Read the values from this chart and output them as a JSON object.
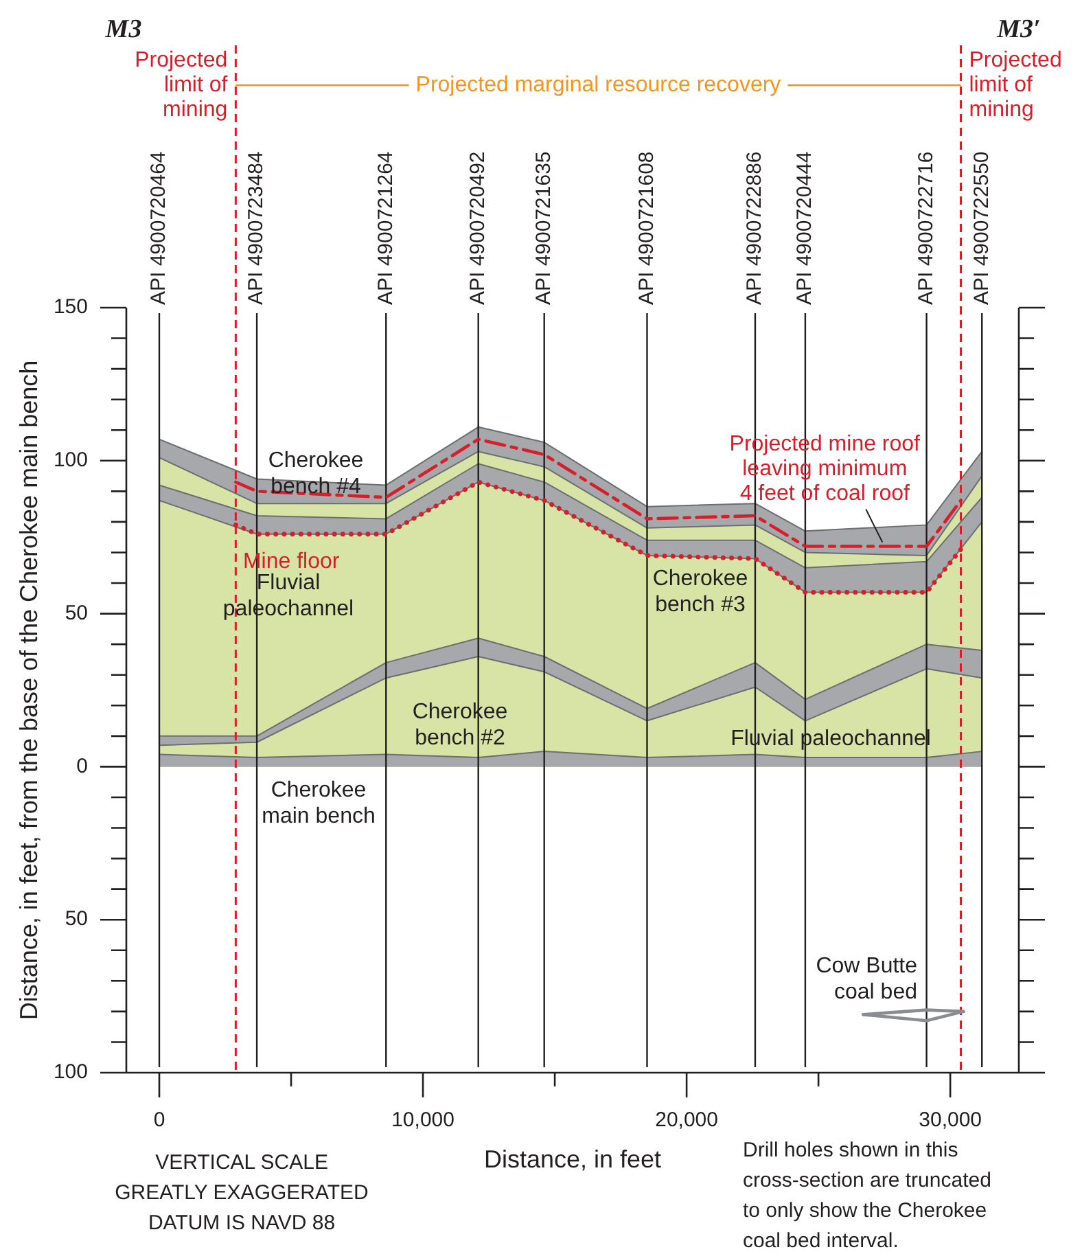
{
  "chart_data": {
    "type": "area",
    "xlabel": "Distance, in feet",
    "ylabel": "Distance, in feet, from the base of the Cherokee main bench",
    "x": [
      0,
      3700,
      8600,
      12100,
      14600,
      18500,
      22600,
      24500,
      29100,
      31200
    ],
    "series": [
      {
        "color": "#a6a8ab",
        "values": [
          4,
          3,
          4,
          3,
          5,
          3,
          4,
          3,
          3,
          5
        ]
      },
      {
        "color": "#d8e4a6",
        "values": [
          7,
          8,
          29,
          36,
          31,
          15,
          26,
          15,
          32,
          29
        ]
      },
      {
        "color": "#a6a8ab",
        "values": [
          10,
          10,
          34,
          42,
          36,
          19,
          34,
          22,
          40,
          38
        ]
      },
      {
        "color": "#d8e4a6",
        "values": [
          87,
          76,
          76,
          93,
          87,
          69,
          68,
          57,
          57,
          80
        ]
      },
      {
        "color": "#a6a8ab",
        "values": [
          92,
          82,
          81,
          99,
          93,
          74,
          74,
          65,
          67,
          88
        ]
      },
      {
        "color": "#d8e4a6",
        "values": [
          101,
          86,
          86,
          103,
          98,
          78,
          79,
          70,
          69,
          95
        ]
      },
      {
        "color": "#a6a8ab",
        "values": [
          107,
          94,
          92,
          111,
          106,
          85,
          86,
          77,
          79,
          103
        ]
      },
      {
        "type": "line",
        "name": "Mine floor",
        "color": "#d71f2b",
        "line_style": "dotted",
        "x": [
          2900,
          3700,
          8600,
          12100,
          14600,
          18500,
          22600,
          24500,
          29100,
          30400
        ],
        "values": [
          79,
          76,
          76,
          93,
          87,
          69,
          68,
          57,
          57,
          71
        ]
      },
      {
        "type": "line",
        "name": "Projected mine roof\nleaving minimum\n4 feet of coal roof",
        "color": "#d71f2b",
        "line_style": "dashed",
        "x": [
          2900,
          3700,
          8600,
          12100,
          14600,
          18500,
          22600,
          24500,
          29100,
          30400
        ],
        "values": [
          93,
          90,
          88,
          107,
          102,
          81,
          82,
          72,
          72,
          87
        ]
      },
      {
        "type": "line",
        "color": "#8a8c8f",
        "x": [
          26700,
          29100,
          30500
        ],
        "values": [
          -81,
          -83,
          -80
        ]
      },
      {
        "type": "line",
        "color": "#8a8c8f",
        "x": [
          26700,
          29100,
          30500
        ],
        "values": [
          -81,
          -79.5,
          -80
        ]
      }
    ],
    "xlim": [
      -1250,
      32600
    ],
    "xticks": [
      0,
      {
        "value": 5000,
        "label": null
      },
      {
        "value": 10000,
        "label": "10,000"
      },
      {
        "value": 15000,
        "label": null
      },
      {
        "value": 20000,
        "label": "20,000"
      },
      {
        "value": 25000,
        "label": null
      },
      {
        "value": 30000,
        "label": "30,000"
      }
    ],
    "ylim": [
      -100,
      150
    ],
    "yticks": [
      {
        "value": -100,
        "label": "100"
      },
      {
        "value": -90,
        "label": null
      },
      {
        "value": -80,
        "label": null
      },
      {
        "value": -70,
        "label": null
      },
      {
        "value": -60,
        "label": null
      },
      {
        "value": -50,
        "label": "50"
      },
      {
        "value": -40,
        "label": null
      },
      {
        "value": -30,
        "label": null
      },
      {
        "value": -20,
        "label": null
      },
      {
        "value": -10,
        "label": null
      },
      0,
      {
        "value": 10,
        "label": null
      },
      {
        "value": 20,
        "label": null
      },
      {
        "value": 30,
        "label": null
      },
      {
        "value": 40,
        "label": null
      },
      50,
      {
        "value": 60,
        "label": null
      },
      {
        "value": 70,
        "label": null
      },
      {
        "value": 80,
        "label": null
      },
      {
        "value": 90,
        "label": null
      },
      100,
      {
        "value": 110,
        "label": null
      },
      {
        "value": 120,
        "label": null
      },
      {
        "value": 130,
        "label": null
      },
      {
        "value": 140,
        "label": null
      },
      150
    ],
    "ref_lines": [
      {
        "axis": "x",
        "value": 0,
        "label": "API 4900720464"
      },
      {
        "axis": "x",
        "value": 3700,
        "label": "API 4900723484"
      },
      {
        "axis": "x",
        "value": 8600,
        "label": "API 4900721264"
      },
      {
        "axis": "x",
        "value": 12100,
        "label": "API 4900720492"
      },
      {
        "axis": "x",
        "value": 14600,
        "label": "API 4900721635"
      },
      {
        "axis": "x",
        "value": 18500,
        "label": "API 4900721608"
      },
      {
        "axis": "x",
        "value": 22600,
        "label": "API 4900722886"
      },
      {
        "axis": "x",
        "value": 24500,
        "label": "API 4900720444"
      },
      {
        "axis": "x",
        "value": 29100,
        "label": "API 4900722716"
      },
      {
        "axis": "x",
        "value": 31200,
        "label": "API 4900722550"
      },
      {
        "axis": "x",
        "value": 2900,
        "label": "Projected\nlimit of\nmining",
        "color": "#d71f2b",
        "line_style": "dashed"
      },
      {
        "axis": "x",
        "value": 30400,
        "label": "Projected\nlimit of\nmining",
        "color": "#d71f2b",
        "line_style": "dashed"
      }
    ],
    "annotations": [
      "M3",
      "M3′",
      "Projected marginal resource recovery",
      "VERTICAL SCALE\nGREATLY EXAGGERATED\nDATUM IS NAVD 88",
      "Drill holes shown in this\ncross-section are truncated\nto only show the Cherokee\ncoal bed interval.",
      "Cherokee\nbench #4",
      "Fluvial\npaleochannel",
      "Cherokee\nbench #3",
      "Cherokee\nbench #2",
      "Fluvial paleochannel",
      "Cherokee\nmain bench",
      "Cow Butte\ncoal bed"
    ]
  }
}
